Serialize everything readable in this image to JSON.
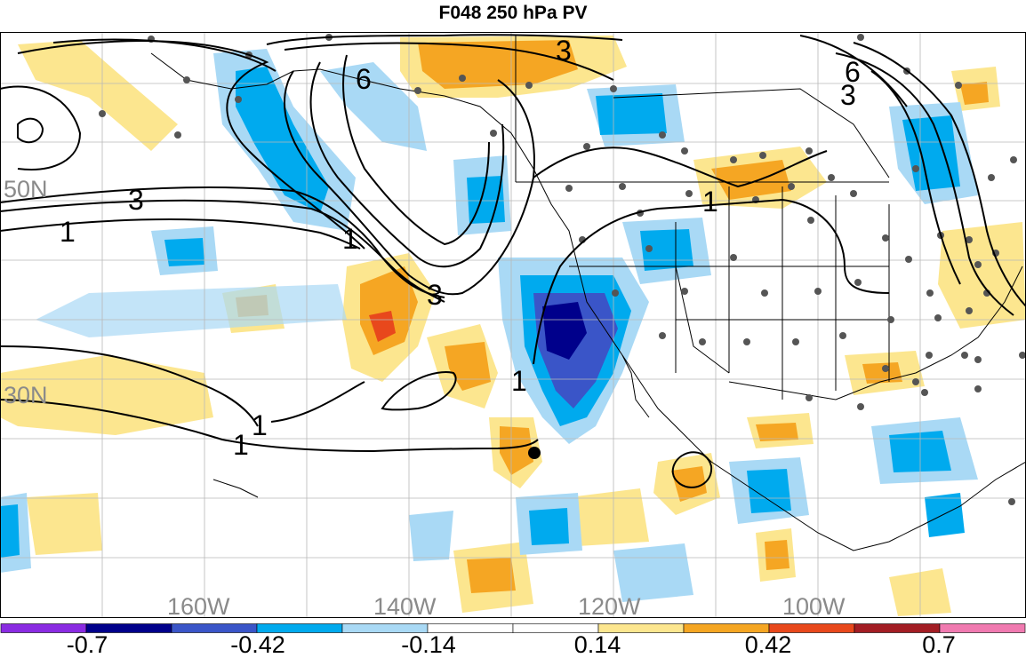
{
  "title": "F048 250 hPa PV",
  "map": {
    "lat_labels": [
      "50N",
      "30N"
    ],
    "lon_labels": [
      "160W",
      "140W",
      "120W",
      "100W"
    ],
    "contour_labels": [
      "3",
      "6",
      "6",
      "3",
      "3",
      "1",
      "1",
      "3",
      "1",
      "1",
      "1",
      "1"
    ]
  },
  "colorbar": {
    "colors": [
      "#8a2be2",
      "#00008b",
      "#3a55c8",
      "#00aaee",
      "#a9d9f5",
      "#ffffff",
      "#ffffff",
      "#fce68f",
      "#f5a623",
      "#e8481c",
      "#a31d24",
      "#f07ab0"
    ],
    "labels": [
      "-0.7",
      "-0.42",
      "-0.14",
      "0.14",
      "0.42",
      "0.7"
    ]
  }
}
